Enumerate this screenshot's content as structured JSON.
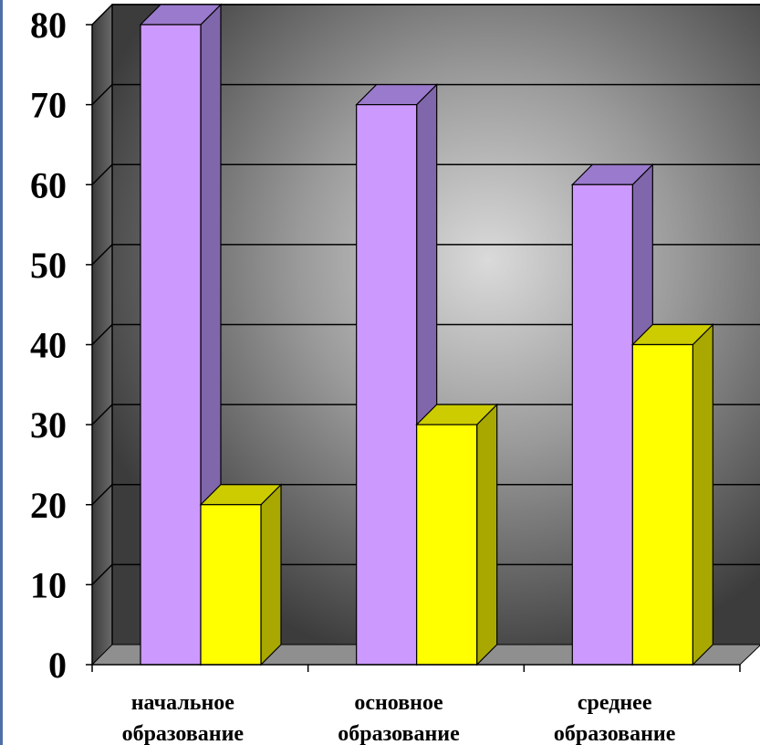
{
  "chart_data": {
    "type": "bar",
    "categories": [
      [
        "начальное",
        "образование"
      ],
      [
        "основное",
        "образование"
      ],
      [
        "среднее",
        "образование"
      ]
    ],
    "series": [
      {
        "values": [
          80,
          70,
          60
        ],
        "color": "#cc99ff",
        "side_color": "#8066aa",
        "top_color": "#9a7acc"
      },
      {
        "values": [
          20,
          30,
          40
        ],
        "color": "#ffff00",
        "side_color": "#a8a800",
        "top_color": "#cccc00"
      }
    ],
    "ylim": [
      0,
      80
    ],
    "yticks": [
      0,
      10,
      20,
      30,
      40,
      50,
      60,
      70,
      80
    ],
    "grid": true,
    "legend": "none",
    "title": "",
    "xlabel": "",
    "ylabel": ""
  }
}
